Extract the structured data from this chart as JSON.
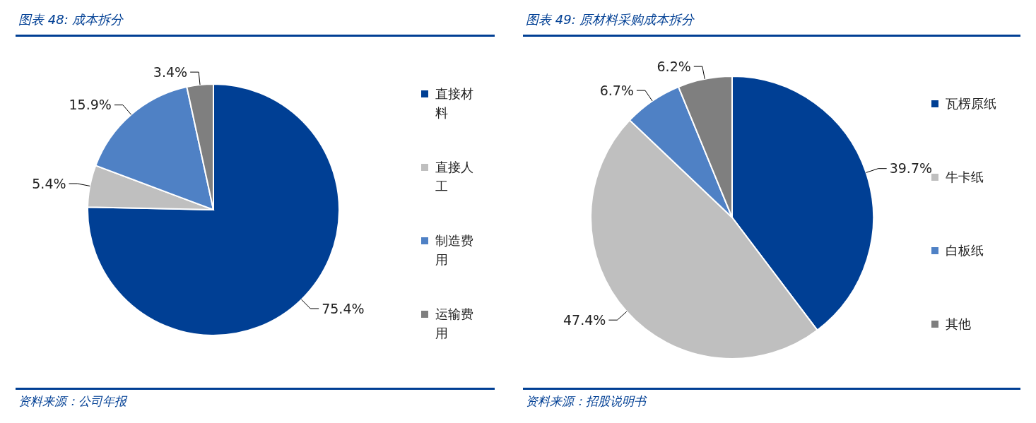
{
  "chart_data": [
    {
      "type": "pie",
      "title": "图表 48:  成本拆分",
      "categories": [
        "直接材料",
        "直接人工",
        "制造费用",
        "运输费用"
      ],
      "values": [
        75.4,
        5.4,
        15.9,
        3.4
      ],
      "value_labels": [
        "75.4%",
        "5.4%",
        "15.9%",
        "3.4%"
      ],
      "colors": [
        "#003f94",
        "#bfbfbf",
        "#4f81c5",
        "#7f7f7f"
      ],
      "legend": "right",
      "annotations": [
        "资料来源：公司年报"
      ]
    },
    {
      "type": "pie",
      "title": "图表 49:  原材料采购成本拆分",
      "categories": [
        "瓦楞原纸",
        "牛卡纸",
        "白板纸",
        "其他"
      ],
      "values": [
        39.7,
        47.4,
        6.7,
        6.2
      ],
      "value_labels": [
        "39.7%",
        "47.4%",
        "6.7%",
        "6.2%"
      ],
      "colors": [
        "#003f94",
        "#bfbfbf",
        "#4f81c5",
        "#7f7f7f"
      ],
      "legend": "right",
      "annotations": [
        "资料来源：招股说明书"
      ]
    }
  ]
}
